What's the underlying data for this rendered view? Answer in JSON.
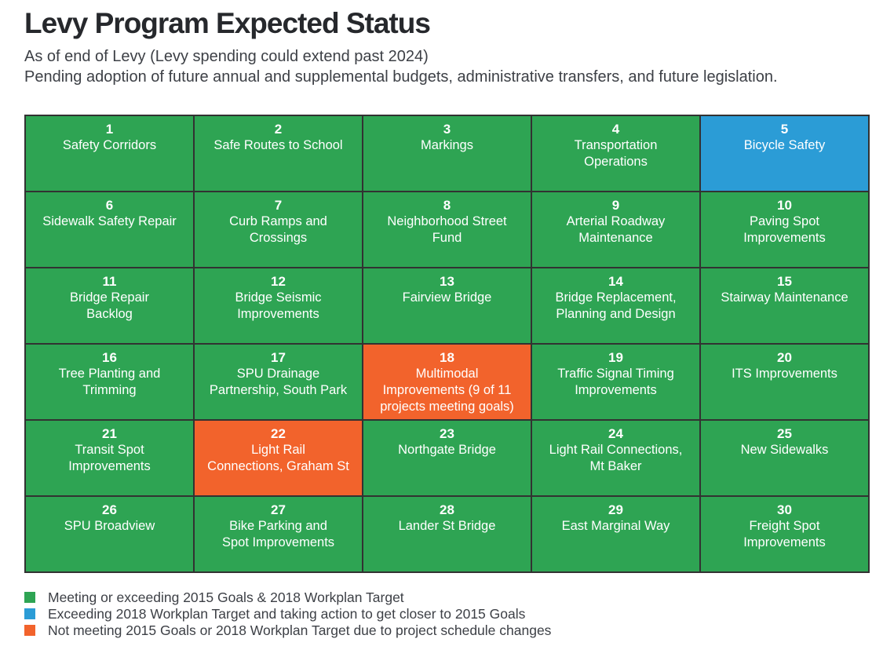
{
  "title": "Levy Program Expected Status",
  "subtitle_line1": "As of end of Levy (Levy spending could extend past 2024)",
  "subtitle_line2": "Pending adoption of future annual and supplemental budgets, administrative transfers, and future legislation.",
  "colors": {
    "green": "#2EA453",
    "blue": "#2B9CD6",
    "orange": "#F2632C",
    "grid_line": "#323232",
    "title_text": "#26282C",
    "body_text": "#3D4046",
    "cell_text": "#FFFFFF"
  },
  "legend": [
    {
      "color_key": "green",
      "label": "Meeting or exceeding 2015 Goals & 2018 Workplan Target"
    },
    {
      "color_key": "blue",
      "label": "Exceeding 2018 Workplan Target and taking action to get closer to 2015 Goals"
    },
    {
      "color_key": "orange",
      "label": "Not meeting 2015 Goals or 2018 Workplan Target due to project schedule changes"
    }
  ],
  "chart_data": {
    "type": "table",
    "title": "Levy Program Expected Status",
    "grid": {
      "rows": 6,
      "cols": 5
    },
    "status_meanings": {
      "green": "Meeting or exceeding 2015 Goals & 2018 Workplan Target",
      "blue": "Exceeding 2018 Workplan Target and taking action to get closer to 2015 Goals",
      "orange": "Not meeting 2015 Goals or 2018 Workplan Target due to project schedule changes"
    },
    "cells": [
      {
        "number": "1",
        "name": "Safety Corridors",
        "status": "green"
      },
      {
        "number": "2",
        "name": "Safe Routes to School",
        "status": "green"
      },
      {
        "number": "3",
        "name": "Markings",
        "status": "green"
      },
      {
        "number": "4",
        "name": "Transportation\nOperations",
        "status": "green"
      },
      {
        "number": "5",
        "name": "Bicycle Safety",
        "status": "blue"
      },
      {
        "number": "6",
        "name": "Sidewalk Safety Repair",
        "status": "green"
      },
      {
        "number": "7",
        "name": "Curb Ramps and\nCrossings",
        "status": "green"
      },
      {
        "number": "8",
        "name": "Neighborhood Street\nFund",
        "status": "green"
      },
      {
        "number": "9",
        "name": "Arterial Roadway\nMaintenance",
        "status": "green"
      },
      {
        "number": "10",
        "name": "Paving Spot\nImprovements",
        "status": "green"
      },
      {
        "number": "11",
        "name": "Bridge Repair\nBacklog",
        "status": "green"
      },
      {
        "number": "12",
        "name": "Bridge Seismic\nImprovements",
        "status": "green"
      },
      {
        "number": "13",
        "name": "Fairview Bridge",
        "status": "green"
      },
      {
        "number": "14",
        "name": "Bridge Replacement,\nPlanning and Design",
        "status": "green"
      },
      {
        "number": "15",
        "name": "Stairway Maintenance",
        "status": "green"
      },
      {
        "number": "16",
        "name": "Tree Planting and\nTrimming",
        "status": "green"
      },
      {
        "number": "17",
        "name": "SPU Drainage\nPartnership, South Park",
        "status": "green"
      },
      {
        "number": "18",
        "name": "Multimodal\nImprovements (9 of 11\nprojects meeting goals)",
        "status": "orange"
      },
      {
        "number": "19",
        "name": "Traffic Signal Timing\nImprovements",
        "status": "green"
      },
      {
        "number": "20",
        "name": "ITS Improvements",
        "status": "green"
      },
      {
        "number": "21",
        "name": "Transit Spot\nImprovements",
        "status": "green"
      },
      {
        "number": "22",
        "name": "Light Rail\nConnections, Graham St",
        "status": "orange"
      },
      {
        "number": "23",
        "name": "Northgate Bridge",
        "status": "green"
      },
      {
        "number": "24",
        "name": "Light Rail Connections,\nMt Baker",
        "status": "green"
      },
      {
        "number": "25",
        "name": "New Sidewalks",
        "status": "green"
      },
      {
        "number": "26",
        "name": "SPU Broadview",
        "status": "green"
      },
      {
        "number": "27",
        "name": "Bike Parking and\nSpot Improvements",
        "status": "green"
      },
      {
        "number": "28",
        "name": "Lander St Bridge",
        "status": "green"
      },
      {
        "number": "29",
        "name": "East Marginal Way",
        "status": "green"
      },
      {
        "number": "30",
        "name": "Freight Spot\nImprovements",
        "status": "green"
      }
    ]
  }
}
